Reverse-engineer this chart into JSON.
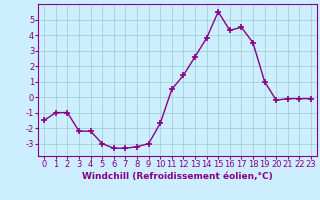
{
  "x": [
    0,
    1,
    2,
    3,
    4,
    5,
    6,
    7,
    8,
    9,
    10,
    11,
    12,
    13,
    14,
    15,
    16,
    17,
    18,
    19,
    20,
    21,
    22,
    23
  ],
  "y": [
    -1.5,
    -1.0,
    -1.0,
    -2.2,
    -2.2,
    -3.0,
    -3.3,
    -3.3,
    -3.2,
    -3.0,
    -1.7,
    0.5,
    1.4,
    2.6,
    3.8,
    5.5,
    4.3,
    4.5,
    3.5,
    1.0,
    -0.2,
    -0.1,
    -0.1,
    -0.1
  ],
  "line_color": "#880088",
  "marker": "+",
  "marker_size": 4,
  "marker_lw": 1.2,
  "line_width": 1.0,
  "background_color": "#cceeff",
  "grid_color": "#99cccc",
  "xlabel": "Windchill (Refroidissement éolien,°C)",
  "xlabel_fontsize": 6.5,
  "tick_fontsize": 6.0,
  "xlim": [
    -0.5,
    23.5
  ],
  "ylim": [
    -3.8,
    6.0
  ],
  "yticks": [
    -3,
    -2,
    -1,
    0,
    1,
    2,
    3,
    4,
    5
  ],
  "xticks": [
    0,
    1,
    2,
    3,
    4,
    5,
    6,
    7,
    8,
    9,
    10,
    11,
    12,
    13,
    14,
    15,
    16,
    17,
    18,
    19,
    20,
    21,
    22,
    23
  ]
}
